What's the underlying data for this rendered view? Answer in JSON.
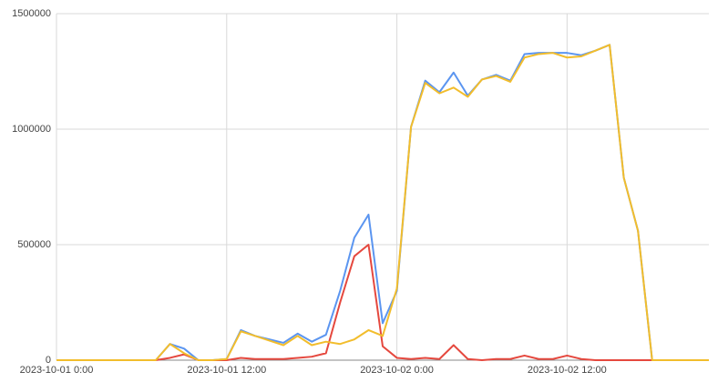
{
  "chart_data": {
    "type": "line",
    "x": [
      "2023-10-01 0:00",
      "2023-10-01 1:00",
      "2023-10-01 2:00",
      "2023-10-01 3:00",
      "2023-10-01 4:00",
      "2023-10-01 5:00",
      "2023-10-01 6:00",
      "2023-10-01 7:00",
      "2023-10-01 8:00",
      "2023-10-01 9:00",
      "2023-10-01 10:00",
      "2023-10-01 11:00",
      "2023-10-01 12:00",
      "2023-10-01 13:00",
      "2023-10-01 14:00",
      "2023-10-01 15:00",
      "2023-10-01 16:00",
      "2023-10-01 17:00",
      "2023-10-01 18:00",
      "2023-10-01 19:00",
      "2023-10-01 20:00",
      "2023-10-01 21:00",
      "2023-10-01 22:00",
      "2023-10-01 23:00",
      "2023-10-02 0:00",
      "2023-10-02 1:00",
      "2023-10-02 2:00",
      "2023-10-02 3:00",
      "2023-10-02 4:00",
      "2023-10-02 5:00",
      "2023-10-02 6:00",
      "2023-10-02 7:00",
      "2023-10-02 8:00",
      "2023-10-02 9:00",
      "2023-10-02 10:00",
      "2023-10-02 11:00",
      "2023-10-02 12:00",
      "2023-10-02 13:00",
      "2023-10-02 14:00",
      "2023-10-02 15:00",
      "2023-10-02 16:00",
      "2023-10-02 17:00",
      "2023-10-02 18:00",
      "2023-10-02 19:00",
      "2023-10-02 20:00",
      "2023-10-02 21:00",
      "2023-10-02 22:00"
    ],
    "xticks": [
      "2023-10-01 0:00",
      "2023-10-01 12:00",
      "2023-10-02 0:00",
      "2023-10-02 12:00"
    ],
    "series": [
      {
        "color": "#5b95f0",
        "values": [
          0,
          0,
          0,
          0,
          0,
          0,
          0,
          0,
          70000,
          50000,
          0,
          0,
          5000,
          130000,
          105000,
          90000,
          75000,
          115000,
          80000,
          110000,
          300000,
          530000,
          630000,
          160000,
          300000,
          1010000,
          1210000,
          1160000,
          1245000,
          1145000,
          1215000,
          1235000,
          1210000,
          1325000,
          1330000,
          1330000,
          1330000,
          1320000,
          1340000,
          1365000,
          790000,
          560000,
          0,
          0,
          0,
          0,
          0
        ]
      },
      {
        "color": "#e5483e",
        "values": [
          0,
          0,
          0,
          0,
          0,
          0,
          0,
          0,
          10000,
          25000,
          0,
          0,
          0,
          10000,
          5000,
          5000,
          5000,
          10000,
          15000,
          30000,
          250000,
          450000,
          500000,
          60000,
          10000,
          5000,
          10000,
          5000,
          65000,
          5000,
          0,
          5000,
          5000,
          20000,
          5000,
          5000,
          20000,
          5000,
          0,
          0,
          0,
          0,
          0,
          0,
          0,
          0,
          0
        ]
      },
      {
        "color": "#f2bd2c",
        "values": [
          0,
          0,
          0,
          0,
          0,
          0,
          0,
          0,
          70000,
          30000,
          0,
          0,
          5000,
          125000,
          105000,
          85000,
          65000,
          105000,
          65000,
          80000,
          70000,
          90000,
          130000,
          105000,
          310000,
          1010000,
          1200000,
          1155000,
          1180000,
          1140000,
          1215000,
          1230000,
          1205000,
          1310000,
          1325000,
          1330000,
          1310000,
          1315000,
          1340000,
          1365000,
          790000,
          560000,
          0,
          0,
          0,
          0,
          0
        ]
      }
    ],
    "ylim": [
      0,
      1500000
    ],
    "yticks": [
      0,
      500000,
      1000000,
      1500000
    ],
    "grid": true
  }
}
